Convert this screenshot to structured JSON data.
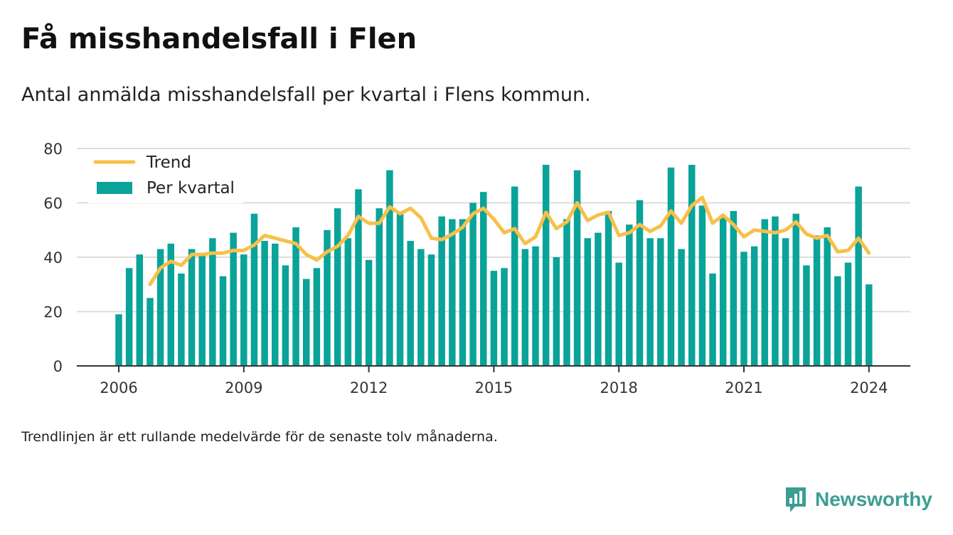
{
  "colors": {
    "bars": "#0aa39a",
    "trend": "#f7c04a",
    "grid": "#dddddd",
    "axis": "#333333",
    "brand": "#3c9e93"
  },
  "icons": {
    "brand": "newsworthy-logo-icon"
  },
  "brand": {
    "name": "Newsworthy"
  },
  "footnote": "Trendlinjen är ett rullande medelvärde för de senaste tolv månaderna.",
  "chart_data": {
    "type": "bar",
    "title": "Få misshandelsfall i Flen",
    "subtitle": "Antal anmälda misshandelsfall per kvartal i Flens kommun.",
    "xlabel": "",
    "ylabel": "",
    "ylim": [
      0,
      80
    ],
    "yticks": [
      0,
      20,
      40,
      60,
      80
    ],
    "xticks": [
      "2006",
      "2009",
      "2012",
      "2015",
      "2018",
      "2021",
      "2024"
    ],
    "grid": true,
    "legend_position": "top-left",
    "categories": [
      "2006Q1",
      "2006Q2",
      "2006Q3",
      "2006Q4",
      "2007Q1",
      "2007Q2",
      "2007Q3",
      "2007Q4",
      "2008Q1",
      "2008Q2",
      "2008Q3",
      "2008Q4",
      "2009Q1",
      "2009Q2",
      "2009Q3",
      "2009Q4",
      "2010Q1",
      "2010Q2",
      "2010Q3",
      "2010Q4",
      "2011Q1",
      "2011Q2",
      "2011Q3",
      "2011Q4",
      "2012Q1",
      "2012Q2",
      "2012Q3",
      "2012Q4",
      "2013Q1",
      "2013Q2",
      "2013Q3",
      "2013Q4",
      "2014Q1",
      "2014Q2",
      "2014Q3",
      "2014Q4",
      "2015Q1",
      "2015Q2",
      "2015Q3",
      "2015Q4",
      "2016Q1",
      "2016Q2",
      "2016Q3",
      "2016Q4",
      "2017Q1",
      "2017Q2",
      "2017Q3",
      "2017Q4",
      "2018Q1",
      "2018Q2",
      "2018Q3",
      "2018Q4",
      "2019Q1",
      "2019Q2",
      "2019Q3",
      "2019Q4",
      "2020Q1",
      "2020Q2",
      "2020Q3",
      "2020Q4",
      "2021Q1",
      "2021Q2",
      "2021Q3",
      "2021Q4",
      "2022Q1",
      "2022Q2",
      "2022Q3",
      "2022Q4",
      "2023Q1",
      "2023Q2",
      "2023Q3",
      "2023Q4",
      "2024Q1"
    ],
    "series": [
      {
        "name": "Per kvartal",
        "type": "bar",
        "values": [
          19,
          36,
          41,
          25,
          43,
          45,
          34,
          43,
          41,
          47,
          33,
          49,
          41,
          56,
          46,
          45,
          37,
          51,
          32,
          36,
          50,
          58,
          47,
          65,
          39,
          58,
          72,
          56,
          46,
          43,
          41,
          55,
          54,
          54,
          60,
          64,
          35,
          36,
          66,
          43,
          44,
          74,
          40,
          54,
          72,
          47,
          49,
          57,
          38,
          52,
          61,
          47,
          47,
          73,
          43,
          74,
          59,
          34,
          55,
          57,
          42,
          44,
          54,
          55,
          47,
          56,
          37,
          48,
          51,
          33,
          38,
          66,
          30
        ]
      },
      {
        "name": "Trend",
        "type": "line",
        "values": [
          null,
          null,
          null,
          30,
          36,
          38.5,
          37,
          41,
          41,
          41.5,
          41.5,
          42.5,
          42.5,
          44.5,
          48,
          47,
          46,
          45,
          41,
          39,
          42,
          44,
          48,
          55,
          52.5,
          52.5,
          58.5,
          56,
          58,
          54.5,
          47,
          46.5,
          48.5,
          51,
          56,
          58,
          54,
          49,
          50.5,
          45,
          47.5,
          56.5,
          50.5,
          53,
          60,
          53.5,
          55.5,
          56.5,
          48,
          49,
          52,
          49.5,
          51.5,
          57,
          52.5,
          59,
          62,
          52.5,
          55.5,
          52,
          47.5,
          50,
          49.5,
          49,
          50,
          53,
          48.5,
          47,
          48,
          42,
          42.5,
          47,
          41.5
        ]
      }
    ]
  }
}
